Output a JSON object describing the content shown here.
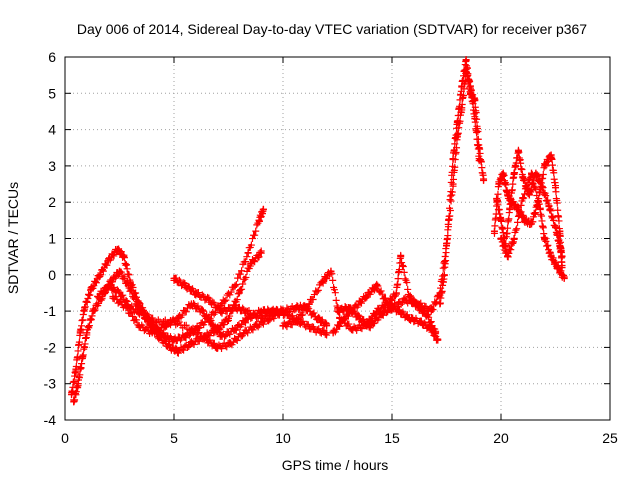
{
  "chart_data": {
    "type": "scatter",
    "title": "Day 006 of 2014, Sidereal Day-to-day VTEC variation (SDTVAR) for receiver p367",
    "xlabel": "GPS time / hours",
    "ylabel": "SDTVAR / TECUs",
    "xlim": [
      0,
      25
    ],
    "ylim": [
      -4,
      6
    ],
    "xticks": [
      "0",
      "5",
      "10",
      "15",
      "20",
      "25"
    ],
    "yticks": [
      "-4",
      "-3",
      "-2",
      "-1",
      "0",
      "1",
      "2",
      "3",
      "4",
      "5",
      "6"
    ],
    "grid": true,
    "marker": "+",
    "color": "#ff0000",
    "series": [
      {
        "name": "track-1",
        "points": [
          [
            0.3,
            -3.3
          ],
          [
            0.5,
            -2.6
          ],
          [
            0.7,
            -1.6
          ],
          [
            0.9,
            -0.9
          ],
          [
            1.2,
            -0.4
          ],
          [
            1.6,
            0.0
          ],
          [
            2.0,
            0.4
          ],
          [
            2.4,
            0.7
          ],
          [
            2.7,
            0.5
          ],
          [
            3.0,
            -0.2
          ],
          [
            3.4,
            -0.8
          ],
          [
            3.8,
            -1.2
          ],
          [
            4.2,
            -1.5
          ],
          [
            4.6,
            -1.7
          ],
          [
            5.0,
            -1.8
          ],
          [
            5.5,
            -1.7
          ],
          [
            6.0,
            -1.5
          ],
          [
            6.6,
            -1.2
          ],
          [
            7.2,
            -0.8
          ],
          [
            7.8,
            -0.3
          ],
          [
            8.4,
            0.6
          ],
          [
            8.9,
            1.5
          ],
          [
            9.1,
            1.8
          ]
        ]
      },
      {
        "name": "track-2",
        "points": [
          [
            0.4,
            -3.5
          ],
          [
            0.6,
            -3.0
          ],
          [
            0.8,
            -2.3
          ],
          [
            1.0,
            -1.6
          ],
          [
            1.3,
            -1.0
          ],
          [
            1.7,
            -0.6
          ],
          [
            2.1,
            -0.2
          ],
          [
            2.5,
            0.1
          ],
          [
            2.9,
            -0.3
          ],
          [
            3.3,
            -0.8
          ],
          [
            3.8,
            -1.3
          ],
          [
            4.3,
            -1.7
          ],
          [
            4.8,
            -2.0
          ],
          [
            5.2,
            -2.1
          ],
          [
            5.8,
            -1.9
          ],
          [
            6.4,
            -1.7
          ],
          [
            7.0,
            -1.5
          ],
          [
            7.5,
            -1.2
          ],
          [
            8.0,
            -0.5
          ],
          [
            8.5,
            0.3
          ],
          [
            9.0,
            0.6
          ]
        ]
      },
      {
        "name": "track-3",
        "points": [
          [
            1.5,
            -0.6
          ],
          [
            2.0,
            -0.3
          ],
          [
            2.5,
            -0.5
          ],
          [
            3.0,
            -0.9
          ],
          [
            3.6,
            -1.1
          ],
          [
            4.2,
            -1.3
          ],
          [
            5.0,
            -1.3
          ],
          [
            5.8,
            -1.5
          ],
          [
            6.5,
            -1.8
          ],
          [
            7.0,
            -2.0
          ],
          [
            7.6,
            -1.9
          ],
          [
            8.2,
            -1.6
          ],
          [
            8.8,
            -1.4
          ],
          [
            9.4,
            -1.2
          ],
          [
            10.0,
            -1.0
          ],
          [
            10.6,
            -0.9
          ],
          [
            11.0,
            -0.9
          ],
          [
            11.6,
            -1.2
          ],
          [
            12.0,
            -1.4
          ]
        ]
      },
      {
        "name": "track-4",
        "points": [
          [
            2.2,
            -0.6
          ],
          [
            2.8,
            -0.9
          ],
          [
            3.4,
            -1.4
          ],
          [
            4.0,
            -1.6
          ],
          [
            4.6,
            -1.4
          ],
          [
            5.2,
            -1.2
          ],
          [
            5.8,
            -0.8
          ],
          [
            6.3,
            -1.0
          ],
          [
            6.8,
            -1.4
          ],
          [
            7.2,
            -1.7
          ],
          [
            7.8,
            -1.5
          ],
          [
            8.4,
            -1.2
          ],
          [
            9.0,
            -1.0
          ],
          [
            9.5,
            -1.0
          ],
          [
            10.0,
            -1.0
          ]
        ]
      },
      {
        "name": "track-5",
        "points": [
          [
            5.0,
            -0.1
          ],
          [
            5.5,
            -0.3
          ],
          [
            6.0,
            -0.5
          ],
          [
            6.6,
            -0.7
          ],
          [
            7.2,
            -1.0
          ],
          [
            7.8,
            -0.9
          ],
          [
            8.3,
            -1.0
          ],
          [
            9.0,
            -1.2
          ],
          [
            9.6,
            -1.0
          ],
          [
            10.2,
            -1.1
          ],
          [
            10.8,
            -1.3
          ],
          [
            11.4,
            -1.5
          ],
          [
            12.0,
            -1.6
          ]
        ]
      },
      {
        "name": "track-6",
        "points": [
          [
            10.0,
            -1.4
          ],
          [
            10.6,
            -1.3
          ],
          [
            11.2,
            -0.8
          ],
          [
            11.8,
            -0.2
          ],
          [
            12.2,
            0.1
          ],
          [
            12.6,
            -1.2
          ],
          [
            13.2,
            -1.5
          ],
          [
            13.8,
            -1.4
          ],
          [
            14.3,
            -1.0
          ],
          [
            14.8,
            -0.8
          ],
          [
            15.2,
            -0.5
          ],
          [
            15.4,
            0.5
          ],
          [
            15.8,
            -0.6
          ],
          [
            16.2,
            -0.9
          ],
          [
            16.6,
            -1.1
          ],
          [
            17.0,
            -1.6
          ]
        ]
      },
      {
        "name": "track-7",
        "points": [
          [
            12.3,
            -1.6
          ],
          [
            12.8,
            -1.2
          ],
          [
            13.3,
            -0.9
          ],
          [
            13.8,
            -0.6
          ],
          [
            14.3,
            -0.3
          ],
          [
            14.8,
            -0.8
          ],
          [
            15.3,
            -1.0
          ],
          [
            15.8,
            -1.2
          ],
          [
            16.3,
            -1.3
          ],
          [
            16.8,
            -1.5
          ],
          [
            17.1,
            -1.8
          ]
        ]
      },
      {
        "name": "track-8",
        "points": [
          [
            12.5,
            -1.0
          ],
          [
            13.0,
            -0.9
          ],
          [
            13.5,
            -1.2
          ],
          [
            14.0,
            -1.4
          ],
          [
            14.5,
            -1.1
          ],
          [
            15.0,
            -0.9
          ],
          [
            15.6,
            -0.7
          ],
          [
            16.2,
            -0.8
          ],
          [
            16.8,
            -1.0
          ],
          [
            17.2,
            -0.5
          ],
          [
            17.5,
            0.8
          ],
          [
            17.8,
            2.5
          ],
          [
            18.0,
            3.8
          ],
          [
            18.2,
            4.6
          ],
          [
            18.4,
            5.6
          ],
          [
            18.6,
            5.2
          ],
          [
            18.8,
            4.3
          ],
          [
            19.0,
            3.2
          ]
        ]
      },
      {
        "name": "track-9",
        "points": [
          [
            17.2,
            -0.8
          ],
          [
            17.4,
            0.0
          ],
          [
            17.6,
            1.5
          ],
          [
            17.8,
            3.2
          ],
          [
            18.0,
            4.2
          ],
          [
            18.2,
            5.2
          ],
          [
            18.4,
            5.9
          ],
          [
            18.6,
            5.0
          ],
          [
            18.8,
            4.8
          ],
          [
            19.0,
            3.5
          ],
          [
            19.2,
            2.6
          ]
        ]
      },
      {
        "name": "track-10",
        "points": [
          [
            19.8,
            2.1
          ],
          [
            20.0,
            1.5
          ],
          [
            20.2,
            0.8
          ],
          [
            20.4,
            1.8
          ],
          [
            20.6,
            2.8
          ],
          [
            20.8,
            3.4
          ],
          [
            21.0,
            2.7
          ],
          [
            21.3,
            2.2
          ],
          [
            21.6,
            2.8
          ],
          [
            21.9,
            2.4
          ],
          [
            22.2,
            1.9
          ],
          [
            22.5,
            1.3
          ],
          [
            22.7,
            0.8
          ],
          [
            22.8,
            0.5
          ]
        ]
      },
      {
        "name": "track-11",
        "points": [
          [
            19.7,
            1.2
          ],
          [
            19.9,
            2.5
          ],
          [
            20.1,
            2.8
          ],
          [
            20.3,
            2.2
          ],
          [
            20.5,
            2.0
          ],
          [
            20.8,
            1.8
          ],
          [
            21.1,
            1.5
          ],
          [
            21.4,
            1.4
          ],
          [
            21.7,
            2.0
          ],
          [
            22.0,
            3.0
          ],
          [
            22.3,
            3.3
          ],
          [
            22.5,
            2.4
          ],
          [
            22.7,
            1.2
          ],
          [
            22.8,
            0.2
          ]
        ]
      },
      {
        "name": "track-12",
        "points": [
          [
            20.0,
            1.0
          ],
          [
            20.3,
            0.5
          ],
          [
            20.6,
            1.0
          ],
          [
            21.0,
            2.1
          ],
          [
            21.4,
            2.8
          ],
          [
            21.8,
            1.8
          ],
          [
            22.0,
            1.0
          ],
          [
            22.3,
            0.5
          ],
          [
            22.6,
            0.2
          ],
          [
            22.9,
            -0.1
          ]
        ]
      }
    ]
  }
}
